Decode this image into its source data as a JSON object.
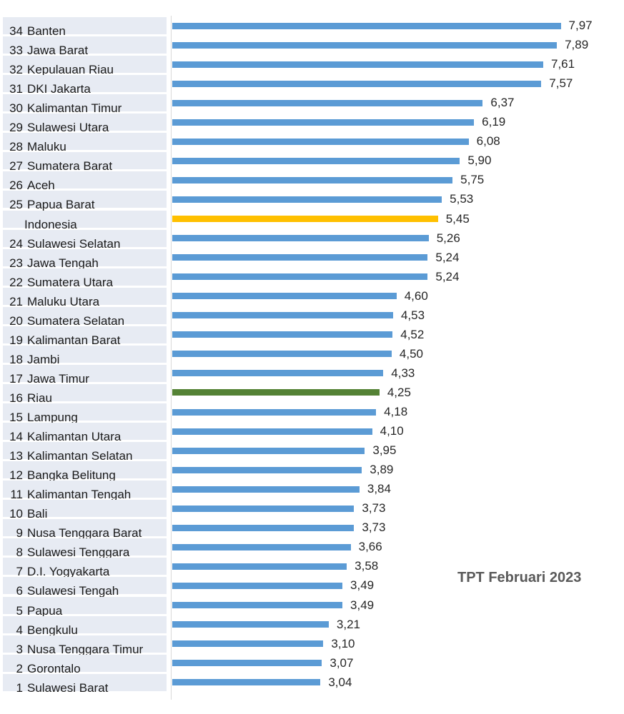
{
  "chart_data": {
    "type": "bar",
    "orientation": "horizontal",
    "annotation": "TPT Februari 2023",
    "xlim": [
      0,
      8
    ],
    "grid": false,
    "legend": "none",
    "colors": {
      "default": "#5b9bd5",
      "national": "#ffc000",
      "highlight": "#548235"
    },
    "rows": [
      {
        "rank": "34",
        "name": "Banten",
        "value": 7.97,
        "label": "7,97",
        "color": "default"
      },
      {
        "rank": "33",
        "name": "Jawa Barat",
        "value": 7.89,
        "label": "7,89",
        "color": "default"
      },
      {
        "rank": "32",
        "name": "Kepulauan Riau",
        "value": 7.61,
        "label": "7,61",
        "color": "default"
      },
      {
        "rank": "31",
        "name": "DKI Jakarta",
        "value": 7.57,
        "label": "7,57",
        "color": "default"
      },
      {
        "rank": "30",
        "name": "Kalimantan Timur",
        "value": 6.37,
        "label": "6,37",
        "color": "default"
      },
      {
        "rank": "29",
        "name": "Sulawesi Utara",
        "value": 6.19,
        "label": "6,19",
        "color": "default"
      },
      {
        "rank": "28",
        "name": "Maluku",
        "value": 6.08,
        "label": "6,08",
        "color": "default"
      },
      {
        "rank": "27",
        "name": "Sumatera Barat",
        "value": 5.9,
        "label": "5,90",
        "color": "default"
      },
      {
        "rank": "26",
        "name": "Aceh",
        "value": 5.75,
        "label": "5,75",
        "color": "default"
      },
      {
        "rank": "25",
        "name": "Papua Barat",
        "value": 5.53,
        "label": "5,53",
        "color": "default"
      },
      {
        "rank": "",
        "name": "Indonesia",
        "value": 5.45,
        "label": "5,45",
        "color": "national"
      },
      {
        "rank": "24",
        "name": "Sulawesi Selatan",
        "value": 5.26,
        "label": "5,26",
        "color": "default"
      },
      {
        "rank": "23",
        "name": "Jawa Tengah",
        "value": 5.24,
        "label": "5,24",
        "color": "default"
      },
      {
        "rank": "22",
        "name": "Sumatera Utara",
        "value": 5.24,
        "label": "5,24",
        "color": "default"
      },
      {
        "rank": "21",
        "name": "Maluku Utara",
        "value": 4.6,
        "label": "4,60",
        "color": "default"
      },
      {
        "rank": "20",
        "name": "Sumatera Selatan",
        "value": 4.53,
        "label": "4,53",
        "color": "default"
      },
      {
        "rank": "19",
        "name": "Kalimantan Barat",
        "value": 4.52,
        "label": "4,52",
        "color": "default"
      },
      {
        "rank": "18",
        "name": "Jambi",
        "value": 4.5,
        "label": "4,50",
        "color": "default"
      },
      {
        "rank": "17",
        "name": "Jawa Timur",
        "value": 4.33,
        "label": "4,33",
        "color": "default"
      },
      {
        "rank": "16",
        "name": "Riau",
        "value": 4.25,
        "label": "4,25",
        "color": "highlight"
      },
      {
        "rank": "15",
        "name": "Lampung",
        "value": 4.18,
        "label": "4,18",
        "color": "default"
      },
      {
        "rank": "14",
        "name": "Kalimantan Utara",
        "value": 4.1,
        "label": "4,10",
        "color": "default"
      },
      {
        "rank": "13",
        "name": "Kalimantan Selatan",
        "value": 3.95,
        "label": "3,95",
        "color": "default"
      },
      {
        "rank": "12",
        "name": "Bangka Belitung",
        "value": 3.89,
        "label": "3,89",
        "color": "default"
      },
      {
        "rank": "11",
        "name": "Kalimantan Tengah",
        "value": 3.84,
        "label": "3,84",
        "color": "default"
      },
      {
        "rank": "10",
        "name": "Bali",
        "value": 3.73,
        "label": "3,73",
        "color": "default"
      },
      {
        "rank": "9",
        "name": "Nusa Tenggara Barat",
        "value": 3.73,
        "label": "3,73",
        "color": "default"
      },
      {
        "rank": "8",
        "name": "Sulawesi Tenggara",
        "value": 3.66,
        "label": "3,66",
        "color": "default"
      },
      {
        "rank": "7",
        "name": "D.I. Yogyakarta",
        "value": 3.58,
        "label": "3,58",
        "color": "default"
      },
      {
        "rank": "6",
        "name": "Sulawesi Tengah",
        "value": 3.49,
        "label": "3,49",
        "color": "default"
      },
      {
        "rank": "5",
        "name": "Papua",
        "value": 3.49,
        "label": "3,49",
        "color": "default"
      },
      {
        "rank": "4",
        "name": "Bengkulu",
        "value": 3.21,
        "label": "3,21",
        "color": "default"
      },
      {
        "rank": "3",
        "name": "Nusa Tenggara Timur",
        "value": 3.1,
        "label": "3,10",
        "color": "default"
      },
      {
        "rank": "2",
        "name": "Gorontalo",
        "value": 3.07,
        "label": "3,07",
        "color": "default"
      },
      {
        "rank": "1",
        "name": "Sulawesi Barat",
        "value": 3.04,
        "label": "3,04",
        "color": "default"
      }
    ]
  }
}
